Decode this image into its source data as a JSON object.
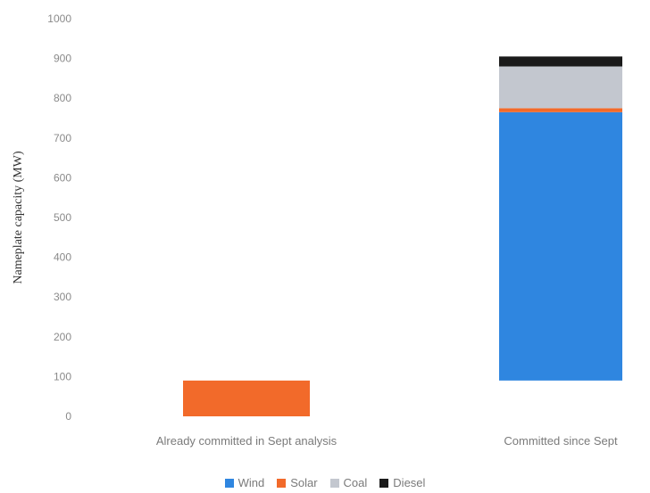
{
  "chart_data": {
    "type": "bar",
    "stacked": true,
    "title": "",
    "xlabel": "",
    "ylabel": "Nameplate capacity (MW)",
    "ylim": [
      0,
      1000
    ],
    "yticks": [
      0,
      100,
      200,
      300,
      400,
      500,
      600,
      700,
      800,
      900,
      1000
    ],
    "grid": false,
    "legend_position": "bottom",
    "categories": [
      "Already committed in Sept analysis",
      "Committed since Sept"
    ],
    "base": [
      0,
      90
    ],
    "series": [
      {
        "name": "Wind",
        "color": "#2f86e0",
        "values": [
          0,
          675
        ]
      },
      {
        "name": "Solar",
        "color": "#f26a2a",
        "values": [
          90,
          10
        ]
      },
      {
        "name": "Coal",
        "color": "#c3c7cf",
        "values": [
          0,
          105
        ]
      },
      {
        "name": "Diesel",
        "color": "#1a1a1a",
        "values": [
          0,
          25
        ]
      }
    ]
  }
}
